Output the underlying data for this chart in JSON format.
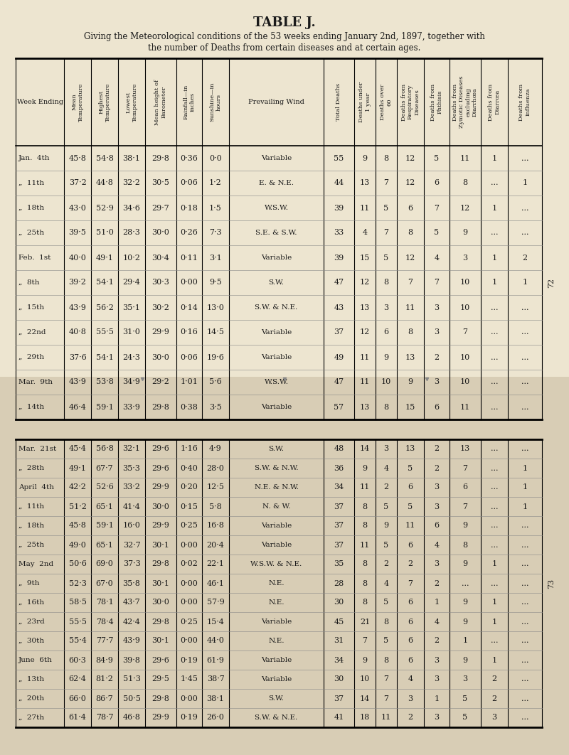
{
  "title": "TABLE J.",
  "subtitle1": "Giving the Meteorological conditions of the 53 weeks ending January 2nd, 1897, together with",
  "subtitle2": "the number of Deaths from certain diseases and at certain ages.",
  "bg_top": "#ede5d0",
  "bg_bottom": "#ddd5bc",
  "col_headers": [
    "Week Ending",
    "Mean\nTemperature",
    "Highest\nTemperature",
    "Lowest\nTemperature",
    "Mean height of\nBarometer",
    "Rainfall—in\ninches",
    "Sunshine—in\nhours",
    "Prevailing Wind",
    "Total Deaths",
    "Deaths under\n1 year",
    "Deaths over\n60",
    "Deaths from\nRespiratory\nDiseases",
    "Deaths from\nPhthisis",
    "Deaths from\nZymotic Diseases\nexcluding\nDiarrhœa",
    "Deaths from\nDiarrœa",
    "Deaths from\nInfluenza"
  ],
  "rows1": [
    [
      "Jan.  4th",
      "45·8",
      "54·8",
      "38·1",
      "29·8",
      "0·36",
      "0·0",
      "Variable",
      "55",
      "9",
      "8",
      "12",
      "5",
      "11",
      "1",
      "..."
    ],
    [
      "„  11th",
      "37·2",
      "44·8",
      "32·2",
      "30·5",
      "0·06",
      "1·2",
      "E. & N.E.",
      "44",
      "13",
      "7",
      "12",
      "6",
      "8",
      "...",
      "1"
    ],
    [
      "„  18th",
      "43·0",
      "52·9",
      "34·6",
      "29·7",
      "0·18",
      "1·5",
      "W.S.W.",
      "39",
      "11",
      "5",
      "6",
      "7",
      "12",
      "1",
      "..."
    ],
    [
      "„  25th",
      "39·5",
      "51·0",
      "28·3",
      "30·0",
      "0·26",
      "7·3",
      "S.E. & S.W.",
      "33",
      "4",
      "7",
      "8",
      "5",
      "9",
      "...",
      "..."
    ],
    [
      "Feb.  1st",
      "40·0",
      "49·1",
      "10·2",
      "30·4",
      "0·11",
      "3·1",
      "Variable",
      "39",
      "15",
      "5",
      "12",
      "4",
      "3",
      "1",
      "2"
    ],
    [
      "„  8th",
      "39·2",
      "54·1",
      "29·4",
      "30·3",
      "0·00",
      "9·5",
      "S.W.",
      "47",
      "12",
      "8",
      "7",
      "7",
      "10",
      "1",
      "1"
    ],
    [
      "„  15th",
      "43·9",
      "56·2",
      "35·1",
      "30·2",
      "0·14",
      "13·0",
      "S.W. & N.E.",
      "43",
      "13",
      "3",
      "11",
      "3",
      "10",
      "...",
      "..."
    ],
    [
      "„  22nd",
      "40·8",
      "55·5",
      "31·0",
      "29·9",
      "0·16",
      "14·5",
      "Variable",
      "37",
      "12",
      "6",
      "8",
      "3",
      "7",
      "...",
      "..."
    ],
    [
      "„  29th",
      "37·6",
      "54·1",
      "24·3",
      "30·0",
      "0·06",
      "19·6",
      "Variable",
      "49",
      "11",
      "9",
      "13",
      "2",
      "10",
      "...",
      "..."
    ],
    [
      "Mar.  9th",
      "43·9",
      "53·8",
      "34·9",
      "29·2",
      "1·01",
      "5·6",
      "W.S.W.",
      "47",
      "11",
      "10",
      "9",
      "3",
      "10",
      "...",
      "..."
    ],
    [
      "„  14th",
      "46·4",
      "59·1",
      "33·9",
      "29·8",
      "0·38",
      "3·5",
      "Variable",
      "57",
      "13",
      "8",
      "15",
      "6",
      "11",
      "...",
      "..."
    ]
  ],
  "rows2": [
    [
      "Mar.  21st",
      "45·4",
      "56·8",
      "32·1",
      "29·6",
      "1·16",
      "4·9",
      "S.W.",
      "48",
      "14",
      "3",
      "13",
      "2",
      "13",
      "...",
      "..."
    ],
    [
      "„  28th",
      "49·1",
      "67·7",
      "35·3",
      "29·6",
      "0·40",
      "28·0",
      "S.W. & N.W.",
      "36",
      "9",
      "4",
      "5",
      "2",
      "7",
      "...",
      "1"
    ],
    [
      "April  4th",
      "42·2",
      "52·6",
      "33·2",
      "29·9",
      "0·20",
      "12·5",
      "N.E. & N.W.",
      "34",
      "11",
      "2",
      "6",
      "3",
      "6",
      "...",
      "1"
    ],
    [
      "„  11th",
      "51·2",
      "65·1",
      "41·4",
      "30·0",
      "0·15",
      "5·8",
      "N. & W.",
      "37",
      "8",
      "5",
      "5",
      "3",
      "7",
      "...",
      "1"
    ],
    [
      "„  18th",
      "45·8",
      "59·1",
      "16·0",
      "29·9",
      "0·25",
      "16·8",
      "Variable",
      "37",
      "8",
      "9",
      "11",
      "6",
      "9",
      "...",
      "..."
    ],
    [
      "„  25th",
      "49·0",
      "65·1",
      "32·7",
      "30·1",
      "0·00",
      "20·4",
      "Variable",
      "37",
      "11",
      "5",
      "6",
      "4",
      "8",
      "...",
      "..."
    ],
    [
      "May  2nd",
      "50·6",
      "69·0",
      "37·3",
      "29·8",
      "0·02",
      "22·1",
      "W.S.W. & N.E.",
      "35",
      "8",
      "2",
      "2",
      "3",
      "9",
      "1",
      "..."
    ],
    [
      "„  9th",
      "52·3",
      "67·0",
      "35·8",
      "30·1",
      "0·00",
      "46·1",
      "N.E.",
      "28",
      "8",
      "4",
      "7",
      "2",
      "...",
      "...",
      "..."
    ],
    [
      "„  16th",
      "58·5",
      "78·1",
      "43·7",
      "30·0",
      "0·00",
      "57·9",
      "N.E.",
      "30",
      "8",
      "5",
      "6",
      "1",
      "9",
      "1",
      "..."
    ],
    [
      "„  23rd",
      "55·5",
      "78·4",
      "42·4",
      "29·8",
      "0·25",
      "15·4",
      "Variable",
      "45",
      "21",
      "8",
      "6",
      "4",
      "9",
      "1",
      "..."
    ],
    [
      "„  30th",
      "55·4",
      "77·7",
      "43·9",
      "30·1",
      "0·00",
      "44·0",
      "N.E.",
      "31",
      "7",
      "5",
      "6",
      "2",
      "1",
      "...",
      "..."
    ],
    [
      "June  6th",
      "60·3",
      "84·9",
      "39·8",
      "29·6",
      "0·19",
      "61·9",
      "Variable",
      "34",
      "9",
      "8",
      "6",
      "3",
      "9",
      "1",
      "..."
    ],
    [
      "„  13th",
      "62·4",
      "81·2",
      "51·3",
      "29·5",
      "1·45",
      "38·7",
      "Variable",
      "30",
      "10",
      "7",
      "4",
      "3",
      "3",
      "2",
      "..."
    ],
    [
      "„  20th",
      "66·0",
      "86·7",
      "50·5",
      "29·8",
      "0·00",
      "38·1",
      "S.W.",
      "37",
      "14",
      "7",
      "3",
      "1",
      "5",
      "2",
      "..."
    ],
    [
      "„  27th",
      "61·4",
      "78·7",
      "46·8",
      "29·9",
      "0·19",
      "26·0",
      "S.W. & N.E.",
      "41",
      "18",
      "11",
      "2",
      "3",
      "5",
      "3",
      "..."
    ]
  ],
  "vcols": [
    22,
    90,
    128,
    166,
    204,
    248,
    284,
    322,
    455,
    498,
    528,
    558,
    596,
    632,
    676,
    714,
    762
  ],
  "page1_num": "72",
  "page2_num": "73"
}
